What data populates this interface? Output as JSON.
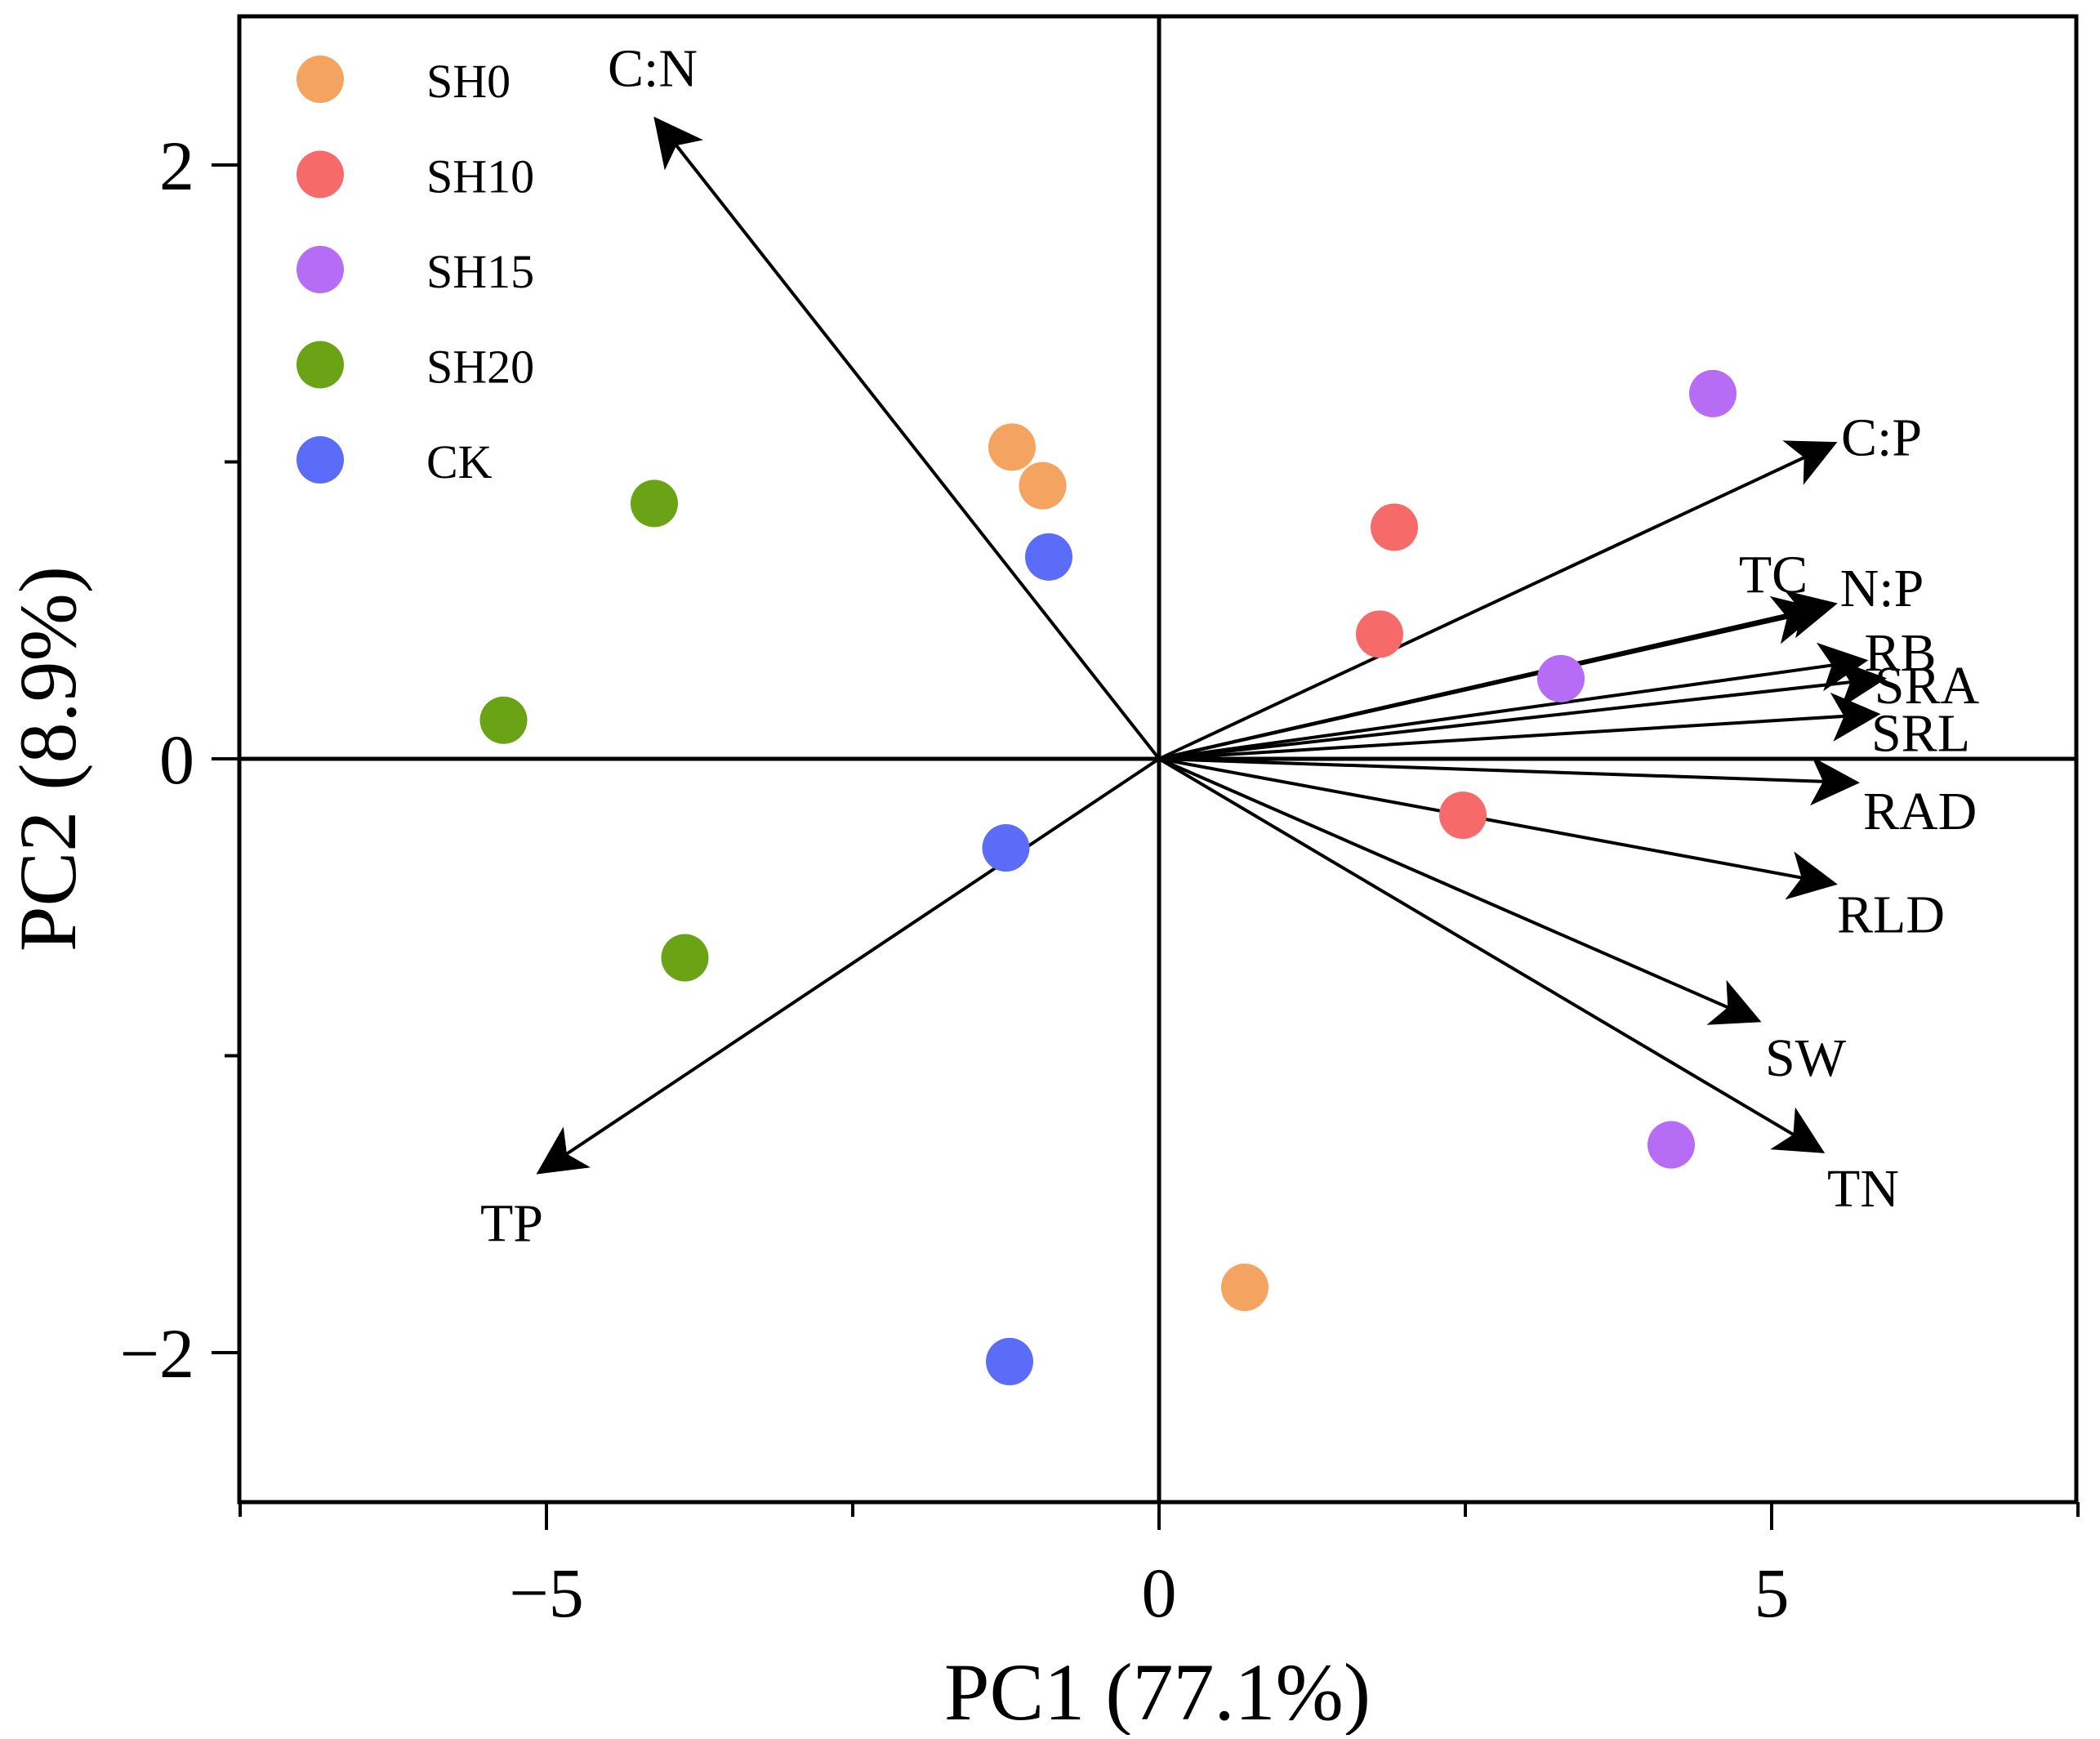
{
  "chart_data": {
    "type": "scatter",
    "title": "",
    "xlabel": "PC1 (77.1%)",
    "ylabel": "PC2 (8.9%)",
    "xlim": [
      -7.5,
      7.5
    ],
    "ylim": [
      -2.5,
      2.5
    ],
    "x_ticks": [
      -5,
      0,
      5
    ],
    "x_tick_labels": [
      "−5",
      "0",
      "5"
    ],
    "x_minor_ticks": [
      -7.5,
      -2.5,
      2.5,
      7.5
    ],
    "y_ticks": [
      2,
      0,
      -2
    ],
    "y_tick_labels": [
      "2",
      "0",
      "−2"
    ],
    "y_minor_ticks": [
      1,
      -1
    ],
    "grid": false,
    "legend_position": "top-left",
    "series": [
      {
        "name": "SH0",
        "color": "#F4A460",
        "points": [
          [
            -1.2,
            1.05
          ],
          [
            -0.95,
            0.92
          ],
          [
            0.7,
            -1.78
          ]
        ]
      },
      {
        "name": "SH10",
        "color": "#F76A6A",
        "points": [
          [
            1.92,
            0.78
          ],
          [
            1.8,
            0.42
          ],
          [
            2.48,
            -0.19
          ]
        ]
      },
      {
        "name": "SH15",
        "color": "#B76CF5",
        "points": [
          [
            4.52,
            1.23
          ],
          [
            3.28,
            0.27
          ],
          [
            4.18,
            -1.3
          ]
        ]
      },
      {
        "name": "SH20",
        "color": "#6AA416",
        "points": [
          [
            -4.12,
            0.86
          ],
          [
            -5.35,
            0.13
          ],
          [
            -3.87,
            -0.67
          ]
        ]
      },
      {
        "name": "CK",
        "color": "#5B6CF8",
        "points": [
          [
            -0.9,
            0.68
          ],
          [
            -1.25,
            -0.3
          ],
          [
            -1.22,
            -2.03
          ]
        ]
      }
    ],
    "vectors": [
      {
        "label": "C:N",
        "x": -4.1,
        "y": 2.15
      },
      {
        "label": "C:P",
        "x": 5.5,
        "y": 1.06
      },
      {
        "label": "TC",
        "x": 5.38,
        "y": 0.5
      },
      {
        "label": "N:P",
        "x": 5.5,
        "y": 0.52
      },
      {
        "label": "RB",
        "x": 5.75,
        "y": 0.33
      },
      {
        "label": "SRA",
        "x": 5.9,
        "y": 0.27
      },
      {
        "label": "SRL",
        "x": 5.85,
        "y": 0.15
      },
      {
        "label": "RAD",
        "x": 5.68,
        "y": -0.08
      },
      {
        "label": "RLD",
        "x": 5.5,
        "y": -0.42
      },
      {
        "label": "SW",
        "x": 4.88,
        "y": -0.88
      },
      {
        "label": "TN",
        "x": 5.4,
        "y": -1.32
      },
      {
        "label": "TP",
        "x": -5.05,
        "y": -1.39
      }
    ]
  }
}
